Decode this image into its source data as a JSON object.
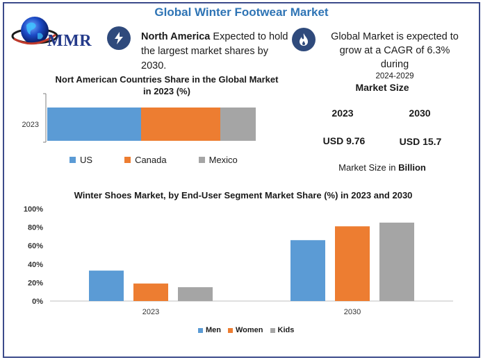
{
  "header": {
    "title": "Global Winter Footwear Market"
  },
  "logo": {
    "text": "MMR",
    "icon": "globe-logo-icon"
  },
  "info_left": {
    "icon": "lightning-icon",
    "bold": "North America",
    "rest": " Expected to hold the largest market shares by 2030."
  },
  "info_right": {
    "icon": "flame-icon",
    "text": "Global Market is expected to grow at a CAGR of 6.3% during",
    "period": "2024-2029"
  },
  "market_size": {
    "title": "Market Size",
    "year_a": "2023",
    "year_b": "2030",
    "value_a": "USD 9.76",
    "value_b": "USD 15.7",
    "note_prefix": "Market Size in ",
    "note_bold": "Billion"
  },
  "colors": {
    "blue": "#5b9bd5",
    "orange": "#ed7d31",
    "gray": "#a5a5a5",
    "title": "#2e74b5",
    "border": "#3b4a8a"
  },
  "chart_data": [
    {
      "type": "bar",
      "orientation": "horizontal-stacked",
      "title": "Nort American Countries Share in the Global Market in 2023 (%)",
      "title_line1": "Nort American Countries Share in the Global Market",
      "title_line2": "in 2023 (%)",
      "categories": [
        "2023"
      ],
      "series": [
        {
          "name": "US",
          "values": [
            45
          ],
          "color": "#5b9bd5"
        },
        {
          "name": "Canada",
          "values": [
            38
          ],
          "color": "#ed7d31"
        },
        {
          "name": "Mexico",
          "values": [
            17
          ],
          "color": "#a5a5a5"
        }
      ],
      "legend": "bottom",
      "grid": false
    },
    {
      "type": "bar",
      "title": "Winter Shoes Market, by End-User Segment Market Share (%) in 2023 and 2030",
      "categories": [
        "2023",
        "2030"
      ],
      "series": [
        {
          "name": "Men",
          "values": [
            33,
            66
          ],
          "color": "#5b9bd5"
        },
        {
          "name": "Women",
          "values": [
            19,
            81
          ],
          "color": "#ed7d31"
        },
        {
          "name": "Kids",
          "values": [
            15,
            85
          ],
          "color": "#a5a5a5"
        }
      ],
      "yticks": [
        "0%",
        "20%",
        "40%",
        "60%",
        "80%",
        "100%"
      ],
      "ylim": [
        0,
        100
      ],
      "legend": "bottom",
      "grid": false
    }
  ]
}
